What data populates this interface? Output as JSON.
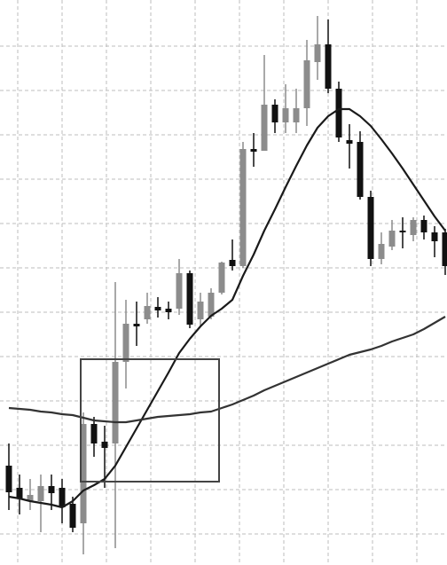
{
  "chart_data": {
    "type": "candlestick",
    "categories": [
      null,
      null,
      null,
      null,
      null,
      null,
      null,
      null,
      null,
      null,
      null,
      null,
      null,
      null,
      null,
      null,
      null,
      null,
      null,
      null,
      null,
      null,
      null,
      null,
      null,
      null,
      null,
      null,
      null,
      null,
      null,
      null,
      null,
      null,
      null,
      null,
      null,
      null,
      null,
      null,
      null,
      null
    ],
    "open": [
      112,
      87,
      72,
      72,
      89,
      87,
      69,
      47,
      159,
      139,
      137,
      229,
      272,
      277,
      291,
      289,
      289,
      329,
      277,
      280,
      307,
      344,
      337,
      469,
      467,
      519,
      499,
      499,
      515,
      567,
      587,
      537,
      479,
      477,
      415,
      345,
      359,
      377,
      372,
      389,
      375,
      375
    ],
    "high": [
      137,
      102,
      97,
      102,
      102,
      97,
      77,
      172,
      167,
      157,
      319,
      299,
      297,
      307,
      302,
      297,
      345,
      332,
      307,
      312,
      342,
      367,
      477,
      487,
      575,
      525,
      542,
      537,
      592,
      619,
      615,
      545,
      497,
      489,
      422,
      375,
      389,
      392,
      392,
      394,
      382,
      379
    ],
    "low": [
      62,
      57,
      62,
      37,
      62,
      47,
      37,
      12,
      122,
      87,
      19,
      199,
      247,
      272,
      279,
      277,
      282,
      267,
      269,
      277,
      305,
      332,
      335,
      449,
      467,
      487,
      487,
      487,
      495,
      547,
      532,
      477,
      447,
      412,
      337,
      339,
      355,
      357,
      365,
      367,
      347,
      327
    ],
    "close": [
      82,
      75,
      79,
      89,
      81,
      65,
      42,
      159,
      137,
      132,
      229,
      272,
      269,
      292,
      287,
      285,
      329,
      271,
      297,
      307,
      341,
      337,
      469,
      466,
      519,
      499,
      515,
      515,
      569,
      587,
      537,
      482,
      475,
      415,
      345,
      362,
      377,
      375,
      389,
      375,
      365,
      337
    ],
    "up_color": "#8c8c8c",
    "down_color": "#111111",
    "series": [
      {
        "color": "#1a1a1a",
        "values": [
          77,
          75,
          72,
          70,
          68,
          65,
          72,
          84,
          90,
          97,
          112,
          133,
          154,
          175,
          196,
          217,
          239,
          255,
          269,
          281,
          289,
          299,
          326,
          350,
          377,
          401,
          426,
          450,
          473,
          493,
          506,
          514,
          514,
          506,
          495,
          480,
          464,
          447,
          429,
          411,
          393,
          377
        ]
      },
      {
        "color": "#333333",
        "values": [
          177,
          176,
          175,
          173,
          172,
          170,
          169,
          166,
          163,
          162,
          161,
          161,
          163,
          165,
          167,
          168,
          169,
          170,
          172,
          173,
          177,
          181,
          186,
          191,
          197,
          202,
          207,
          212,
          217,
          222,
          227,
          232,
          237,
          240,
          243,
          247,
          252,
          256,
          260,
          266,
          273,
          280
        ]
      }
    ],
    "ylim": [
      0,
      637
    ],
    "yticks": [
      585,
      535,
      485,
      435,
      385,
      335,
      285,
      235,
      185,
      135,
      85,
      35
    ],
    "grid": true
  }
}
